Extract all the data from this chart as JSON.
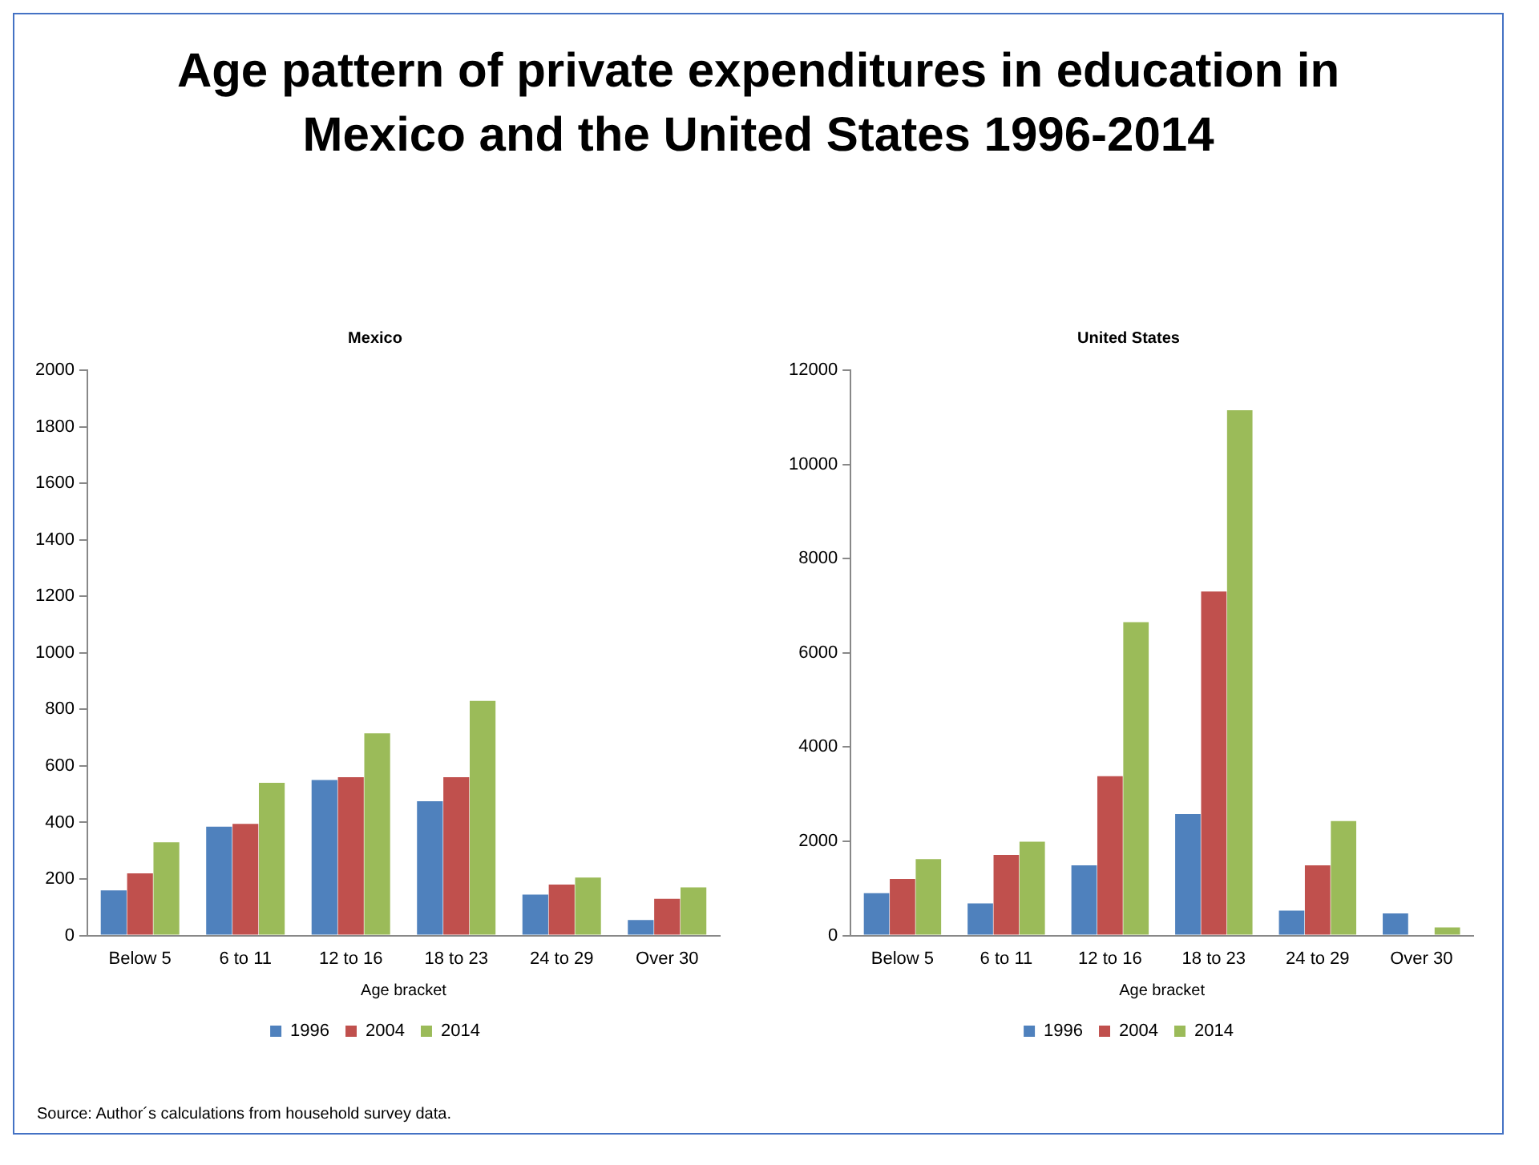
{
  "chart_data": [
    {
      "type": "other",
      "title": "Age pattern of private expenditures in education in Mexico and the United States 1996-2014",
      "annotations": [
        "Source: Author´s calculations from household survey data."
      ]
    },
    {
      "type": "bar",
      "title": "Mexico",
      "xlabel": "Age bracket",
      "categories": [
        "Below 5",
        "6 to 11",
        "12 to 16",
        "18 to 23",
        "24 to 29",
        "Over 30"
      ],
      "series": [
        {
          "name": "1996",
          "color": "#4f81bd",
          "values": [
            160,
            385,
            550,
            475,
            145,
            55
          ]
        },
        {
          "name": "2004",
          "color": "#c0504d",
          "values": [
            220,
            395,
            560,
            560,
            180,
            130
          ]
        },
        {
          "name": "2014",
          "color": "#9bbb59",
          "values": [
            330,
            540,
            715,
            830,
            205,
            170
          ]
        }
      ],
      "ylim": [
        0,
        2000
      ],
      "yticks": [
        0,
        200,
        400,
        600,
        800,
        1000,
        1200,
        1400,
        1600,
        1800,
        2000
      ],
      "grid": false,
      "legend": "bottom"
    },
    {
      "type": "bar",
      "title": "United States",
      "xlabel": "Age bracket",
      "categories": [
        "Below 5",
        "6 to 11",
        "12 to 16",
        "18 to 23",
        "24 to 29",
        "Over 30"
      ],
      "series": [
        {
          "name": "1996",
          "color": "#4f81bd",
          "values": [
            900,
            680,
            1490,
            2580,
            530,
            470
          ]
        },
        {
          "name": "2004",
          "color": "#c0504d",
          "values": [
            1200,
            1710,
            3380,
            7300,
            1490,
            null
          ]
        },
        {
          "name": "2014",
          "color": "#9bbb59",
          "values": [
            1620,
            1990,
            6650,
            11150,
            2430,
            170
          ]
        }
      ],
      "ylim": [
        0,
        12000
      ],
      "yticks": [
        0,
        2000,
        4000,
        6000,
        8000,
        10000,
        12000
      ],
      "grid": false,
      "legend": "bottom"
    }
  ]
}
